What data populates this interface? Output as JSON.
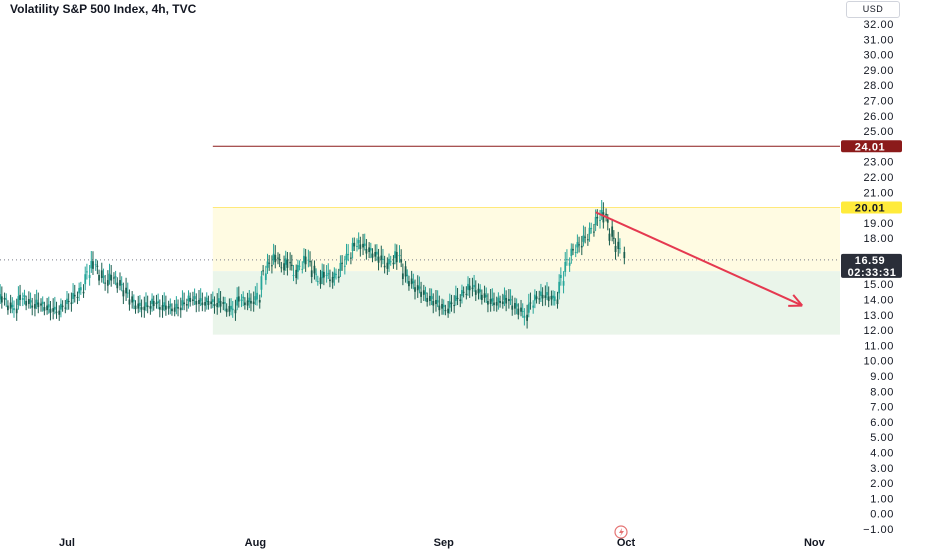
{
  "header": {
    "title": "Volatility S&P 500 Index, 4h, TVC",
    "currency": "USD"
  },
  "colors": {
    "up": "#26a69a",
    "down": "#1b5e4f",
    "resistance_line": "#8b1a1a",
    "resistance_zone": "#fffbe2",
    "support_zone": "#eaf5ea",
    "arrow": "#e53950",
    "price_tag": "#2a2e39"
  },
  "chart_data": {
    "type": "line",
    "ylim": [
      -1,
      32
    ],
    "yticks": [
      32,
      31,
      30,
      29,
      28,
      27,
      26,
      25,
      23,
      22,
      21,
      19,
      18,
      15,
      14,
      13,
      12,
      11,
      10,
      9,
      8,
      7,
      6,
      5,
      4,
      3,
      2,
      1,
      0,
      -1
    ],
    "ytick_labels": [
      "32.00",
      "31.00",
      "30.00",
      "29.00",
      "28.00",
      "27.00",
      "26.00",
      "25.00",
      "23.00",
      "22.00",
      "21.00",
      "19.00",
      "18.00",
      "15.00",
      "14.00",
      "13.00",
      "12.00",
      "11.00",
      "10.00",
      "9.00",
      "8.00",
      "7.00",
      "6.00",
      "5.00",
      "4.00",
      "3.00",
      "2.00",
      "1.00",
      "0.00",
      "−1.00"
    ],
    "xticks": [
      "Jul",
      "Aug",
      "Sep",
      "Oct",
      "Nov"
    ],
    "xtick_dates": [
      "2023-07-01",
      "2023-08-01",
      "2023-09-01",
      "2023-10-01",
      "2023-11-01"
    ],
    "series": [
      {
        "points": [
          [
            "2023-06-19",
            13.9
          ],
          [
            "2023-06-20",
            14.2
          ],
          [
            "2023-06-21",
            13.6
          ],
          [
            "2023-06-22",
            13.3
          ],
          [
            "2023-06-23",
            14.3
          ],
          [
            "2023-06-24",
            13.9
          ],
          [
            "2023-06-25",
            13.6
          ],
          [
            "2023-06-26",
            13.8
          ],
          [
            "2023-06-27",
            13.5
          ],
          [
            "2023-06-28",
            13.4
          ],
          [
            "2023-06-29",
            13.2
          ],
          [
            "2023-06-30",
            13.6
          ],
          [
            "2023-07-01",
            13.9
          ],
          [
            "2023-07-02",
            14.3
          ],
          [
            "2023-07-03",
            14.6
          ],
          [
            "2023-07-04",
            15.8
          ],
          [
            "2023-07-05",
            16.5
          ],
          [
            "2023-07-06",
            15.6
          ],
          [
            "2023-07-07",
            15.1
          ],
          [
            "2023-07-08",
            15.6
          ],
          [
            "2023-07-09",
            15.1
          ],
          [
            "2023-07-10",
            14.6
          ],
          [
            "2023-07-11",
            14.0
          ],
          [
            "2023-07-12",
            13.6
          ],
          [
            "2023-07-13",
            13.5
          ],
          [
            "2023-07-14",
            13.6
          ],
          [
            "2023-07-15",
            13.9
          ],
          [
            "2023-07-16",
            13.5
          ],
          [
            "2023-07-17",
            13.6
          ],
          [
            "2023-07-18",
            13.4
          ],
          [
            "2023-07-19",
            13.5
          ],
          [
            "2023-07-20",
            13.8
          ],
          [
            "2023-07-21",
            14.1
          ],
          [
            "2023-07-22",
            13.9
          ],
          [
            "2023-07-23",
            13.8
          ],
          [
            "2023-07-24",
            13.9
          ],
          [
            "2023-07-25",
            13.7
          ],
          [
            "2023-07-26",
            13.9
          ],
          [
            "2023-07-27",
            13.4
          ],
          [
            "2023-07-28",
            13.3
          ],
          [
            "2023-07-29",
            14.2
          ],
          [
            "2023-07-30",
            13.8
          ],
          [
            "2023-07-31",
            13.9
          ],
          [
            "2023-08-01",
            14.0
          ],
          [
            "2023-08-02",
            15.9
          ],
          [
            "2023-08-03",
            16.4
          ],
          [
            "2023-08-04",
            16.9
          ],
          [
            "2023-08-05",
            16.1
          ],
          [
            "2023-08-06",
            16.6
          ],
          [
            "2023-08-07",
            15.6
          ],
          [
            "2023-08-08",
            16.2
          ],
          [
            "2023-08-09",
            16.8
          ],
          [
            "2023-08-10",
            15.9
          ],
          [
            "2023-08-11",
            15.2
          ],
          [
            "2023-08-12",
            15.8
          ],
          [
            "2023-08-13",
            15.3
          ],
          [
            "2023-08-14",
            15.6
          ],
          [
            "2023-08-15",
            16.4
          ],
          [
            "2023-08-16",
            16.9
          ],
          [
            "2023-08-17",
            17.7
          ],
          [
            "2023-08-18",
            17.6
          ],
          [
            "2023-08-19",
            17.3
          ],
          [
            "2023-08-20",
            17.0
          ],
          [
            "2023-08-21",
            16.8
          ],
          [
            "2023-08-22",
            16.2
          ],
          [
            "2023-08-23",
            16.5
          ],
          [
            "2023-08-24",
            17.1
          ],
          [
            "2023-08-25",
            15.7
          ],
          [
            "2023-08-26",
            15.2
          ],
          [
            "2023-08-27",
            14.8
          ],
          [
            "2023-08-28",
            14.5
          ],
          [
            "2023-08-29",
            14.1
          ],
          [
            "2023-08-30",
            13.9
          ],
          [
            "2023-08-31",
            13.6
          ],
          [
            "2023-09-01",
            13.3
          ],
          [
            "2023-09-02",
            13.8
          ],
          [
            "2023-09-03",
            14.1
          ],
          [
            "2023-09-04",
            14.5
          ],
          [
            "2023-09-05",
            14.9
          ],
          [
            "2023-09-06",
            14.6
          ],
          [
            "2023-09-07",
            14.3
          ],
          [
            "2023-09-08",
            13.9
          ],
          [
            "2023-09-09",
            13.8
          ],
          [
            "2023-09-10",
            13.9
          ],
          [
            "2023-09-11",
            14.1
          ],
          [
            "2023-09-12",
            13.6
          ],
          [
            "2023-09-13",
            13.4
          ],
          [
            "2023-09-14",
            12.8
          ],
          [
            "2023-09-15",
            13.8
          ],
          [
            "2023-09-16",
            14.2
          ],
          [
            "2023-09-17",
            14.3
          ],
          [
            "2023-09-18",
            14.2
          ],
          [
            "2023-09-19",
            13.9
          ],
          [
            "2023-09-20",
            15.4
          ],
          [
            "2023-09-21",
            16.6
          ],
          [
            "2023-09-22",
            17.3
          ],
          [
            "2023-09-23",
            17.6
          ],
          [
            "2023-09-24",
            18.1
          ],
          [
            "2023-09-25",
            18.6
          ],
          [
            "2023-09-26",
            19.4
          ],
          [
            "2023-09-27",
            19.7
          ],
          [
            "2023-09-28",
            18.3
          ],
          [
            "2023-09-29",
            17.5
          ],
          [
            "2023-09-30",
            16.9
          ]
        ]
      }
    ],
    "horizontal_line": {
      "value": 24.01,
      "label": "24.01",
      "from": "2023-07-25"
    },
    "zones": [
      {
        "name": "resistance",
        "from": "2023-07-25",
        "to_edge": true,
        "top": 20.01,
        "bottom": 15.85,
        "label": "20.01"
      },
      {
        "name": "support",
        "from": "2023-07-25",
        "to_edge": true,
        "top": 15.85,
        "bottom": 11.7
      }
    ],
    "arrow": {
      "start": [
        "2023-09-26",
        19.7
      ],
      "end": [
        "2023-10-30",
        13.6
      ]
    },
    "last_price": {
      "value": 16.59,
      "label": "16.59",
      "countdown": "02:33:31"
    }
  }
}
